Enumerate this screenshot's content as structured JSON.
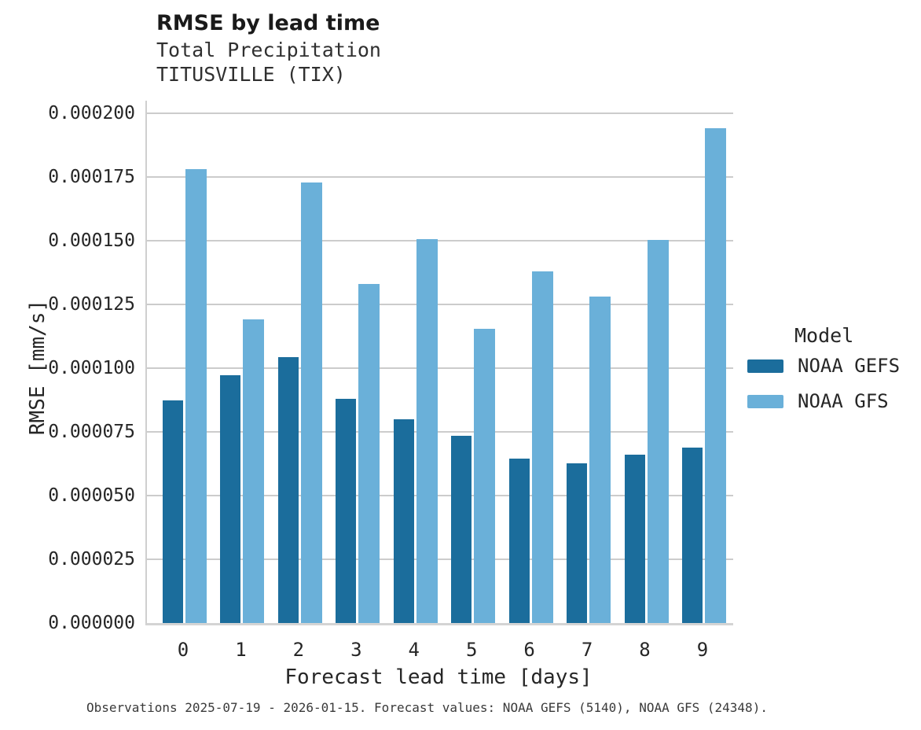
{
  "header": {
    "title": "RMSE by lead time",
    "subtitle_line1": "Total Precipitation",
    "subtitle_line2": "TITUSVILLE (TIX)"
  },
  "chart_data": {
    "type": "bar",
    "title": "RMSE by lead time",
    "subtitle": [
      "Total Precipitation",
      "TITUSVILLE (TIX)"
    ],
    "xlabel": "Forecast lead time [days]",
    "ylabel": "RMSE [mm/s]",
    "categories": [
      "0",
      "1",
      "2",
      "3",
      "4",
      "5",
      "6",
      "7",
      "8",
      "9"
    ],
    "series": [
      {
        "name": "NOAA GEFS",
        "color": "#1b6d9c",
        "values": [
          8.75e-05,
          9.72e-05,
          0.0001043,
          8.81e-05,
          7.99e-05,
          7.34e-05,
          6.45e-05,
          6.28e-05,
          6.61e-05,
          6.9e-05
        ]
      },
      {
        "name": "NOAA GFS",
        "color": "#6ab0d9",
        "values": [
          0.0001782,
          0.0001192,
          0.0001729,
          0.0001332,
          0.0001506,
          0.0001156,
          0.0001379,
          0.000128,
          0.0001504,
          0.0001943
        ]
      }
    ],
    "ylim": [
      0,
      0.000205
    ],
    "ytick_labels": [
      "0.000000",
      "0.000025",
      "0.000050",
      "0.000075",
      "0.000100",
      "0.000125",
      "0.000150",
      "0.000175",
      "0.000200"
    ],
    "ytick_step": 2.5e-05,
    "grid": true,
    "legend_title": "Model",
    "legend_position": "right"
  },
  "caption": "Observations 2025-07-19 - 2026-01-15. Forecast values: NOAA GEFS (5140), NOAA GFS (24348)."
}
